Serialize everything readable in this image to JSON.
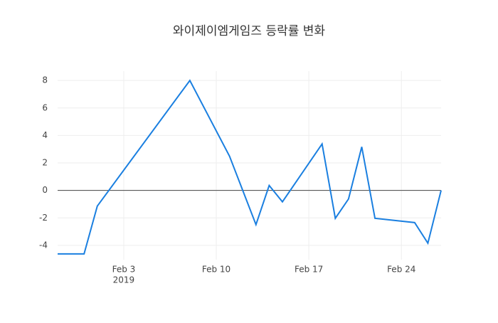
{
  "chart_data": {
    "type": "line",
    "title": "와이제이엠게임즈 등락률 변화",
    "x": [
      "2019-01-29",
      "2019-01-31",
      "2019-02-01",
      "2019-02-08",
      "2019-02-11",
      "2019-02-13",
      "2019-02-14",
      "2019-02-15",
      "2019-02-18",
      "2019-02-19",
      "2019-02-20",
      "2019-02-21",
      "2019-02-22",
      "2019-02-25",
      "2019-02-26",
      "2019-02-27"
    ],
    "series": [
      {
        "color": "#1a7fe0",
        "values": [
          -4.62,
          -4.62,
          -1.14,
          8.0,
          2.49,
          -2.49,
          0.36,
          -0.83,
          3.38,
          -2.03,
          -0.62,
          3.17,
          -2.03,
          -2.34,
          -3.84,
          0
        ]
      }
    ],
    "xlim": [
      "2019-01-29",
      "2019-02-27"
    ],
    "xticks": [
      {
        "value": "2019-02-03",
        "label": "Feb 3",
        "sublabel": "2019"
      },
      {
        "value": "2019-02-10",
        "label": "Feb 10"
      },
      {
        "value": "2019-02-17",
        "label": "Feb 17"
      },
      {
        "value": "2019-02-24",
        "label": "Feb 24"
      }
    ],
    "ylim": [
      -5.04,
      8.68
    ],
    "yticks": [
      -4,
      -2,
      0,
      2,
      4,
      6,
      8
    ],
    "grid": true,
    "zeroline": true
  }
}
